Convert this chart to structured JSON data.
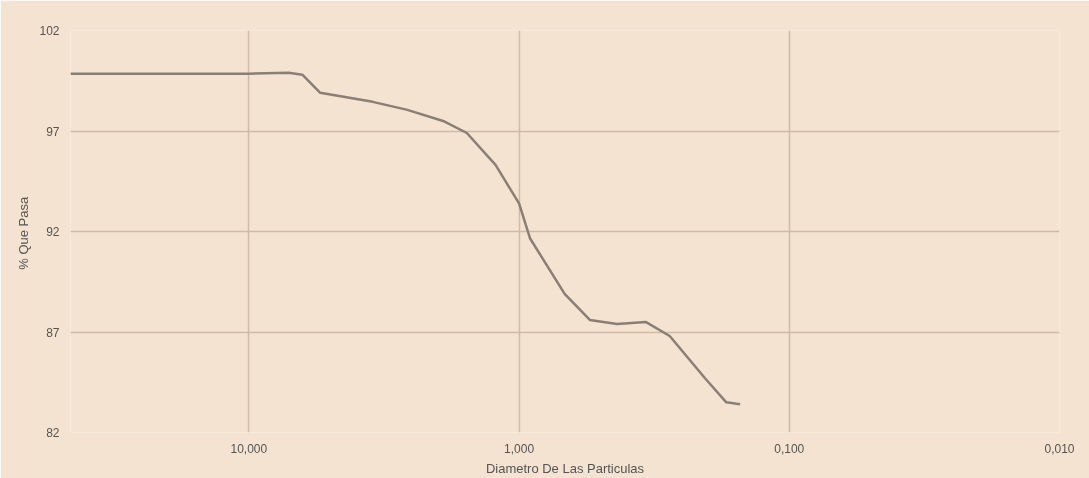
{
  "chart_data": {
    "type": "line",
    "xlabel": "Diametro De Las Particulas",
    "ylabel": "%  Que Pasa",
    "log": "x",
    "grid": true,
    "marker": "none",
    "line_style": "solid",
    "xlim": [
      45.7,
      0.01
    ],
    "ylim": [
      82,
      102
    ],
    "xticks": [
      {
        "value": 10,
        "label": "10,000"
      },
      {
        "value": 1,
        "label": "1,000"
      },
      {
        "value": 0.1,
        "label": "0,100"
      },
      {
        "value": 0.01,
        "label": "0,010"
      }
    ],
    "yticks": [
      82,
      87,
      92,
      97,
      102
    ],
    "x": [
      45.7,
      20.8,
      10,
      7.12,
      6.34,
      5.44,
      3.48,
      2.59,
      1.91,
      1.56,
      1.22,
      1.0,
      0.91,
      0.678,
      0.547,
      0.434,
      0.34,
      0.277,
      0.205,
      0.171,
      0.152
    ],
    "series": [
      {
        "color": "#8a7f76",
        "values": [
          99.85,
          99.85,
          99.85,
          99.9,
          99.8,
          98.9,
          98.45,
          98.05,
          97.5,
          96.9,
          95.3,
          93.4,
          91.65,
          88.9,
          87.6,
          87.4,
          87.5,
          86.8,
          84.7,
          83.5,
          83.4
        ]
      }
    ]
  }
}
